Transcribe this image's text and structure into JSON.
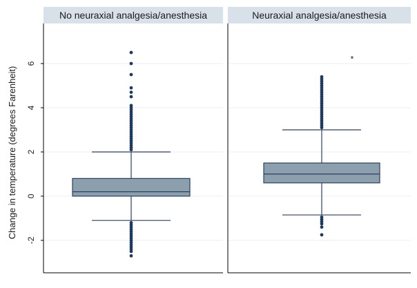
{
  "chart_data": {
    "type": "boxplot",
    "ylabel": "Change in temperature (degrees Farenheit)",
    "ylim": [
      -3.2,
      7.6
    ],
    "y_ticks": [
      "-2",
      "0",
      "2",
      "4",
      "6"
    ],
    "grid": true,
    "panels": [
      {
        "title": "No neuraxial analgesia/anesthesia",
        "box": {
          "whisker_low": -1.1,
          "q1": 0.0,
          "median": 0.2,
          "q3": 0.8,
          "whisker_high": 2.0
        },
        "outliers_high": [
          2.1,
          2.2,
          2.3,
          2.4,
          2.5,
          2.6,
          2.7,
          2.8,
          2.9,
          3.0,
          3.1,
          3.2,
          3.3,
          3.4,
          3.5,
          3.6,
          3.7,
          3.8,
          3.9,
          4.0,
          4.1,
          4.5,
          4.7,
          4.9,
          5.5,
          6.0,
          6.5
        ],
        "outliers_low": [
          -1.2,
          -1.3,
          -1.4,
          -1.5,
          -1.6,
          -1.7,
          -1.8,
          -1.9,
          -2.0,
          -2.1,
          -2.2,
          -2.3,
          -2.4,
          -2.5,
          -2.7
        ],
        "annotation": ""
      },
      {
        "title": "Neuraxial analgesia/anesthesia",
        "box": {
          "whisker_low": -0.85,
          "q1": 0.6,
          "median": 1.0,
          "q3": 1.5,
          "whisker_high": 3.0
        },
        "outliers_high": [
          3.1,
          3.2,
          3.3,
          3.4,
          3.5,
          3.6,
          3.7,
          3.8,
          3.9,
          4.0,
          4.1,
          4.2,
          4.3,
          4.4,
          4.5,
          4.6,
          4.7,
          4.8,
          4.9,
          5.0,
          5.1,
          5.2,
          5.3,
          5.4
        ],
        "outliers_low": [
          -0.95,
          -1.05,
          -1.15,
          -1.25,
          -1.4,
          -1.75
        ],
        "annotation": "*",
        "annotation_y": 6.2
      }
    ]
  },
  "colors": {
    "box_fill": "#8c9fad",
    "box_stroke": "#2a3f5f",
    "point": "#1f3a5f",
    "grid": "#e8ecf0",
    "header_bg": "#d8e0ea",
    "frame": "#000000"
  }
}
